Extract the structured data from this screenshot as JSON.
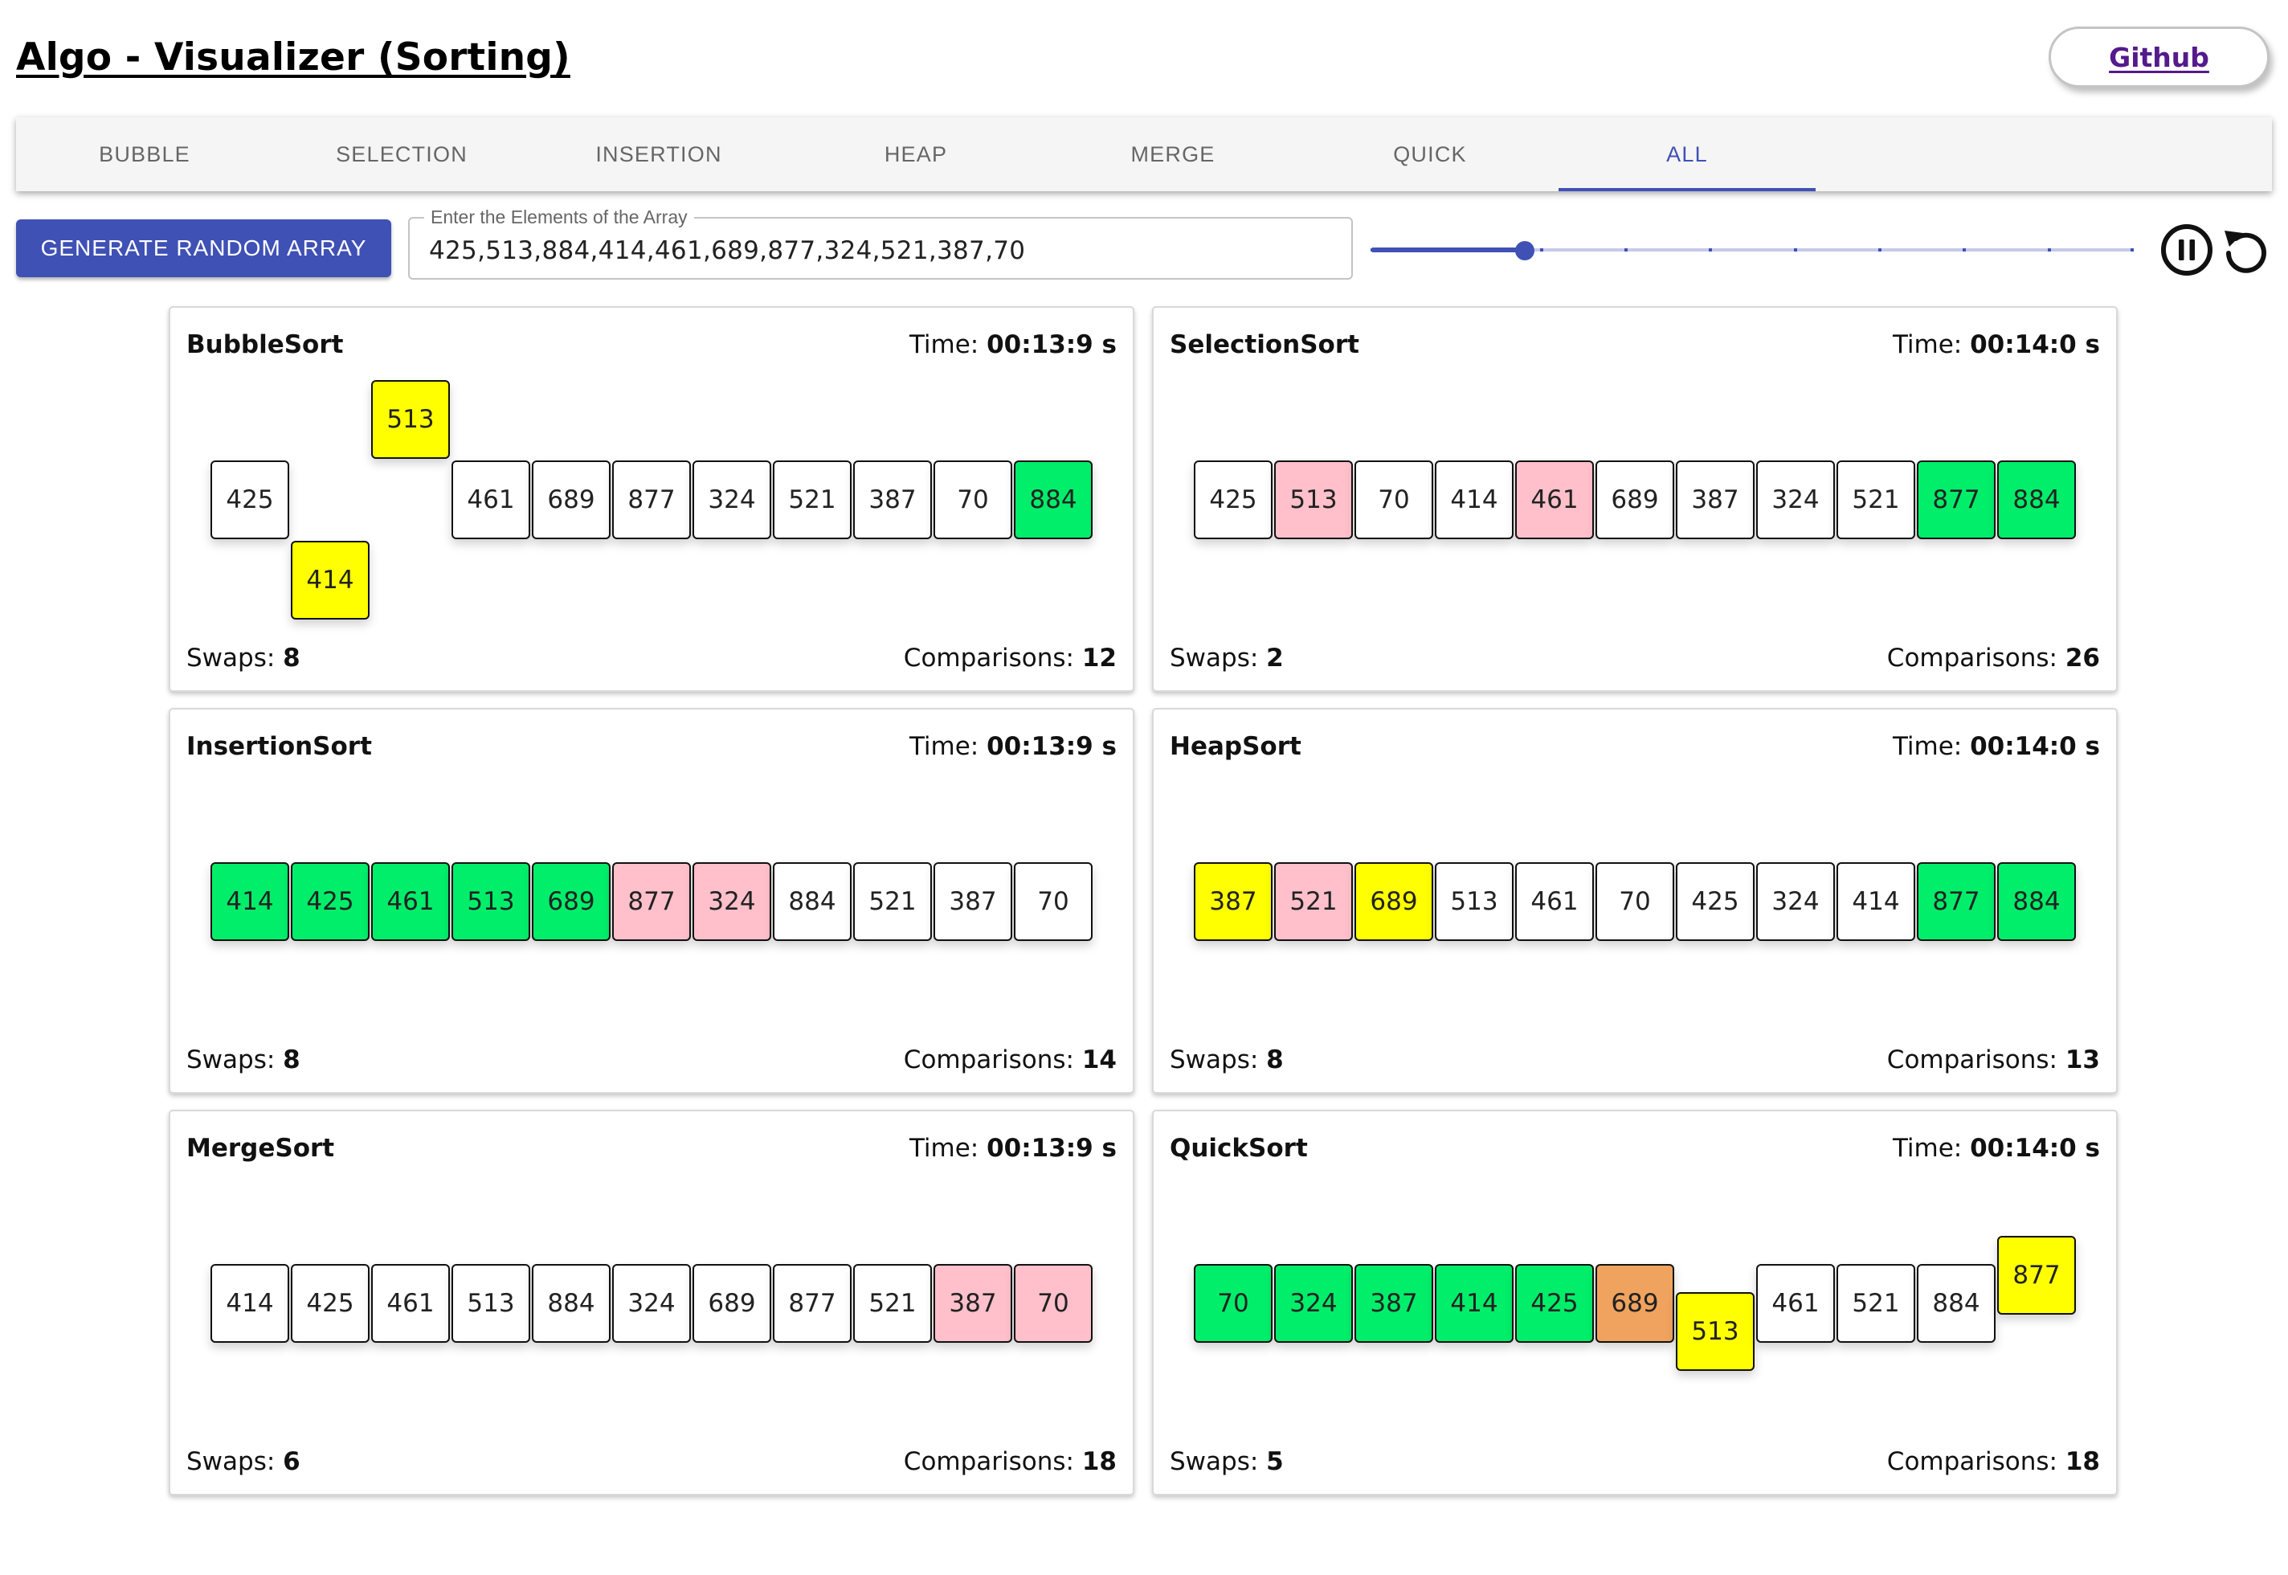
{
  "header": {
    "title": "Algo - Visualizer (Sorting)",
    "github_label": "Github"
  },
  "tabs": [
    {
      "label": "BUBBLE",
      "active": false
    },
    {
      "label": "SELECTION",
      "active": false
    },
    {
      "label": "INSERTION",
      "active": false
    },
    {
      "label": "HEAP",
      "active": false
    },
    {
      "label": "MERGE",
      "active": false
    },
    {
      "label": "QUICK",
      "active": false
    },
    {
      "label": "ALL",
      "active": true
    }
  ],
  "controls": {
    "generate_label": "GENERATE RANDOM ARRAY",
    "array_field_label": "Enter the Elements of the Array",
    "array_value": "425,513,884,414,461,689,877,324,521,387,70",
    "speed_slider": {
      "value_fraction": 0.2,
      "steps": 9
    },
    "pause_icon": "pause-circle-icon",
    "reset_icon": "replay-icon"
  },
  "colors": {
    "accent": "#3f51b5",
    "sorted": "#00ee6a",
    "compare": "#ffff00",
    "swap": "#ffc0cb",
    "pivot": "#f0a35e",
    "default": "#ffffff"
  },
  "cards": [
    {
      "name": "BubbleSort",
      "time_label": "Time:",
      "time": "00:13:9 s",
      "swaps_label": "Swaps:",
      "swaps": "8",
      "comparisons_label": "Comparisons:",
      "comparisons": "12",
      "cells": [
        {
          "v": "425",
          "s": "default",
          "o": 0
        },
        {
          "v": "414",
          "s": "compare",
          "o": 1
        },
        {
          "v": "513",
          "s": "compare",
          "o": -1
        },
        {
          "v": "461",
          "s": "default",
          "o": 0
        },
        {
          "v": "689",
          "s": "default",
          "o": 0
        },
        {
          "v": "877",
          "s": "default",
          "o": 0
        },
        {
          "v": "324",
          "s": "default",
          "o": 0
        },
        {
          "v": "521",
          "s": "default",
          "o": 0
        },
        {
          "v": "387",
          "s": "default",
          "o": 0
        },
        {
          "v": "70",
          "s": "default",
          "o": 0
        },
        {
          "v": "884",
          "s": "sorted",
          "o": 0
        }
      ]
    },
    {
      "name": "SelectionSort",
      "time_label": "Time:",
      "time": "00:14:0 s",
      "swaps_label": "Swaps:",
      "swaps": "2",
      "comparisons_label": "Comparisons:",
      "comparisons": "26",
      "cells": [
        {
          "v": "425",
          "s": "default",
          "o": 0
        },
        {
          "v": "513",
          "s": "swap",
          "o": 0
        },
        {
          "v": "70",
          "s": "default",
          "o": 0
        },
        {
          "v": "414",
          "s": "default",
          "o": 0
        },
        {
          "v": "461",
          "s": "swap",
          "o": 0
        },
        {
          "v": "689",
          "s": "default",
          "o": 0
        },
        {
          "v": "387",
          "s": "default",
          "o": 0
        },
        {
          "v": "324",
          "s": "default",
          "o": 0
        },
        {
          "v": "521",
          "s": "default",
          "o": 0
        },
        {
          "v": "877",
          "s": "sorted",
          "o": 0
        },
        {
          "v": "884",
          "s": "sorted",
          "o": 0
        }
      ]
    },
    {
      "name": "InsertionSort",
      "time_label": "Time:",
      "time": "00:13:9 s",
      "swaps_label": "Swaps:",
      "swaps": "8",
      "comparisons_label": "Comparisons:",
      "comparisons": "14",
      "cells": [
        {
          "v": "414",
          "s": "sorted",
          "o": 0
        },
        {
          "v": "425",
          "s": "sorted",
          "o": 0
        },
        {
          "v": "461",
          "s": "sorted",
          "o": 0
        },
        {
          "v": "513",
          "s": "sorted",
          "o": 0
        },
        {
          "v": "689",
          "s": "sorted",
          "o": 0
        },
        {
          "v": "877",
          "s": "swap",
          "o": 0
        },
        {
          "v": "324",
          "s": "swap",
          "o": 0
        },
        {
          "v": "884",
          "s": "default",
          "o": 0
        },
        {
          "v": "521",
          "s": "default",
          "o": 0
        },
        {
          "v": "387",
          "s": "default",
          "o": 0
        },
        {
          "v": "70",
          "s": "default",
          "o": 0
        }
      ]
    },
    {
      "name": "HeapSort",
      "time_label": "Time:",
      "time": "00:14:0 s",
      "swaps_label": "Swaps:",
      "swaps": "8",
      "comparisons_label": "Comparisons:",
      "comparisons": "13",
      "cells": [
        {
          "v": "387",
          "s": "compare",
          "o": 0
        },
        {
          "v": "521",
          "s": "swap",
          "o": 0
        },
        {
          "v": "689",
          "s": "compare",
          "o": 0
        },
        {
          "v": "513",
          "s": "default",
          "o": 0
        },
        {
          "v": "461",
          "s": "default",
          "o": 0
        },
        {
          "v": "70",
          "s": "default",
          "o": 0
        },
        {
          "v": "425",
          "s": "default",
          "o": 0
        },
        {
          "v": "324",
          "s": "default",
          "o": 0
        },
        {
          "v": "414",
          "s": "default",
          "o": 0
        },
        {
          "v": "877",
          "s": "sorted",
          "o": 0
        },
        {
          "v": "884",
          "s": "sorted",
          "o": 0
        }
      ]
    },
    {
      "name": "MergeSort",
      "time_label": "Time:",
      "time": "00:13:9 s",
      "swaps_label": "Swaps:",
      "swaps": "6",
      "comparisons_label": "Comparisons:",
      "comparisons": "18",
      "cells": [
        {
          "v": "414",
          "s": "default",
          "o": 0
        },
        {
          "v": "425",
          "s": "default",
          "o": 0
        },
        {
          "v": "461",
          "s": "default",
          "o": 0
        },
        {
          "v": "513",
          "s": "default",
          "o": 0
        },
        {
          "v": "884",
          "s": "default",
          "o": 0
        },
        {
          "v": "324",
          "s": "default",
          "o": 0
        },
        {
          "v": "689",
          "s": "default",
          "o": 0
        },
        {
          "v": "877",
          "s": "default",
          "o": 0
        },
        {
          "v": "521",
          "s": "default",
          "o": 0
        },
        {
          "v": "387",
          "s": "swap",
          "o": 0
        },
        {
          "v": "70",
          "s": "swap",
          "o": 0
        }
      ]
    },
    {
      "name": "QuickSort",
      "time_label": "Time:",
      "time": "00:14:0 s",
      "swaps_label": "Swaps:",
      "swaps": "5",
      "comparisons_label": "Comparisons:",
      "comparisons": "18",
      "cells": [
        {
          "v": "70",
          "s": "sorted",
          "o": 0
        },
        {
          "v": "324",
          "s": "sorted",
          "o": 0
        },
        {
          "v": "387",
          "s": "sorted",
          "o": 0
        },
        {
          "v": "414",
          "s": "sorted",
          "o": 0
        },
        {
          "v": "425",
          "s": "sorted",
          "o": 0
        },
        {
          "v": "689",
          "s": "pivot",
          "o": 0
        },
        {
          "v": "513",
          "s": "compare",
          "o": 0.35
        },
        {
          "v": "461",
          "s": "default",
          "o": 0
        },
        {
          "v": "521",
          "s": "default",
          "o": 0
        },
        {
          "v": "884",
          "s": "default",
          "o": 0
        },
        {
          "v": "877",
          "s": "compare",
          "o": -0.35
        }
      ]
    }
  ]
}
